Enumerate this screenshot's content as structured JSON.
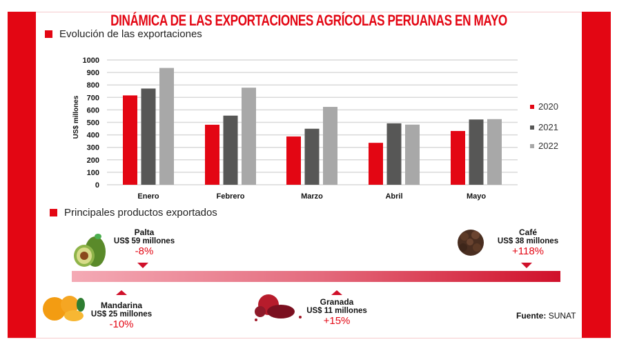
{
  "title": "DINÁMICA DE LAS EXPORTACIONES AGRÍCOLAS PERUANAS EN MAYO",
  "sections": {
    "evolution": "Evolución de las exportaciones",
    "products": "Principales productos exportados"
  },
  "colors": {
    "accent": "#e30613",
    "s2020": "#e30613",
    "s2021": "#575756",
    "s2022": "#a8a8a8"
  },
  "chart_data": {
    "type": "bar",
    "title": "Evolución de las exportaciones",
    "xlabel": "",
    "ylabel": "US$ millones",
    "ylim": [
      0,
      1000
    ],
    "yticks": [
      "0",
      "100",
      "200",
      "300",
      "400",
      "500",
      "600",
      "700",
      "800",
      "900",
      "1000"
    ],
    "grid": true,
    "legend_position": "right",
    "categories": [
      "Enero",
      "Febrero",
      "Marzo",
      "Abril",
      "Mayo"
    ],
    "series": [
      {
        "name": "2020",
        "values": [
          716,
          481,
          387,
          336,
          431
        ]
      },
      {
        "name": "2021",
        "values": [
          771,
          554,
          449,
          492,
          523
        ]
      },
      {
        "name": "2022",
        "values": [
          936,
          778,
          624,
          482,
          526
        ]
      }
    ]
  },
  "products": [
    {
      "name": "Palta",
      "value": "US$ 59 millones",
      "change": "-8%",
      "icon": "avocado-icon"
    },
    {
      "name": "Mandarina",
      "value": "US$ 25 millones",
      "change": "-10%",
      "icon": "tangerine-icon"
    },
    {
      "name": "Granada",
      "value": "US$ 11 millones",
      "change": "+15%",
      "icon": "pomegranate-icon"
    },
    {
      "name": "Café",
      "value": "US$ 38 millones",
      "change": "+118%",
      "icon": "coffee-beans-icon"
    }
  ],
  "source": {
    "label": "Fuente:",
    "value": "SUNAT"
  }
}
